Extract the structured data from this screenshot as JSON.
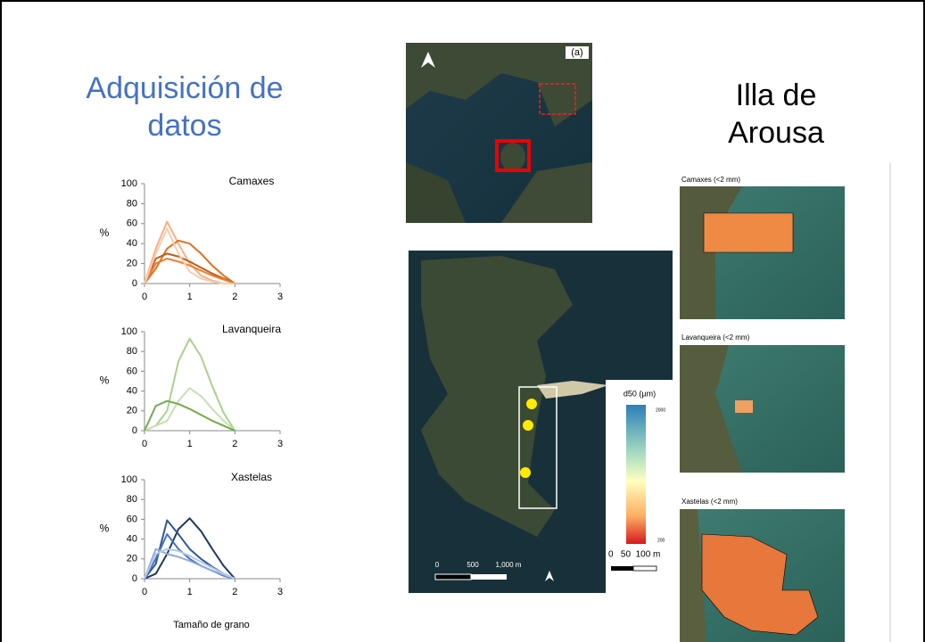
{
  "title": "Adquisición de datos",
  "side_title": "Illa de Arousa",
  "chart_data": [
    {
      "type": "line",
      "label": "Camaxes",
      "y_label": "%",
      "x": [
        0,
        0.25,
        0.5,
        0.75,
        1,
        1.25,
        1.5,
        1.75,
        2
      ],
      "xlim": [
        0,
        3
      ],
      "xticks": [
        0,
        1,
        2,
        3
      ],
      "ylim": [
        0,
        100
      ],
      "yticks": [
        0,
        20,
        40,
        60,
        80,
        100
      ],
      "series": [
        {
          "color": "#f4b183",
          "values": [
            0,
            35,
            62,
            40,
            20,
            8,
            3,
            0,
            0
          ]
        },
        {
          "color": "#e07020",
          "values": [
            0,
            15,
            35,
            43,
            40,
            30,
            18,
            8,
            0
          ]
        },
        {
          "color": "#c55a11",
          "values": [
            0,
            25,
            30,
            27,
            22,
            16,
            10,
            5,
            0
          ]
        },
        {
          "color": "#ed7d31",
          "values": [
            0,
            20,
            25,
            22,
            18,
            13,
            8,
            4,
            0
          ]
        },
        {
          "color": "#f8cbad",
          "values": [
            0,
            30,
            55,
            30,
            12,
            5,
            2,
            0,
            0
          ]
        }
      ]
    },
    {
      "type": "line",
      "label": "Lavanqueira",
      "y_label": "%",
      "x": [
        0,
        0.25,
        0.5,
        0.75,
        1,
        1.25,
        1.5,
        1.75,
        2
      ],
      "xlim": [
        0,
        3
      ],
      "xticks": [
        0,
        1,
        2,
        3
      ],
      "ylim": [
        0,
        100
      ],
      "yticks": [
        0,
        20,
        40,
        60,
        80,
        100
      ],
      "series": [
        {
          "color": "#a9d18e",
          "values": [
            0,
            5,
            20,
            70,
            93,
            75,
            45,
            18,
            0
          ]
        },
        {
          "color": "#c5e0b4",
          "values": [
            0,
            5,
            10,
            30,
            43,
            35,
            22,
            10,
            0
          ]
        },
        {
          "color": "#70ad47",
          "values": [
            0,
            25,
            30,
            27,
            22,
            16,
            10,
            5,
            0
          ]
        }
      ]
    },
    {
      "type": "line",
      "label": "Xastelas",
      "y_label": "%",
      "x_label": "Tamaño de grano",
      "x": [
        0,
        0.25,
        0.5,
        0.75,
        1,
        1.25,
        1.5,
        1.75,
        2
      ],
      "xlim": [
        0,
        3
      ],
      "xticks": [
        0,
        1,
        2,
        3
      ],
      "ylim": [
        0,
        100
      ],
      "yticks": [
        0,
        20,
        40,
        60,
        80,
        100
      ],
      "series": [
        {
          "color": "#203864",
          "values": [
            0,
            5,
            25,
            50,
            61,
            48,
            30,
            13,
            0
          ]
        },
        {
          "color": "#2f5597",
          "values": [
            0,
            15,
            59,
            45,
            30,
            20,
            12,
            5,
            0
          ]
        },
        {
          "color": "#4472c4",
          "values": [
            0,
            20,
            45,
            30,
            20,
            13,
            8,
            3,
            0
          ]
        },
        {
          "color": "#8faadc",
          "values": [
            0,
            30,
            25,
            22,
            18,
            13,
            8,
            4,
            0
          ]
        },
        {
          "color": "#b4c7e7",
          "values": [
            0,
            25,
            30,
            28,
            23,
            17,
            11,
            5,
            0
          ]
        }
      ]
    }
  ],
  "maps": {
    "inset_label": "(a)",
    "legend_title": "d50 (µm)",
    "legend_max": "2000",
    "legend_min": "200",
    "scale_small": "0   50  100 m",
    "scale_large": [
      "0",
      "500",
      "1,000 m"
    ],
    "panels": [
      "Camaxes (<2 mm)",
      "Lavanqueira (<2 mm)",
      "Xastelas (<2 mm)"
    ]
  }
}
